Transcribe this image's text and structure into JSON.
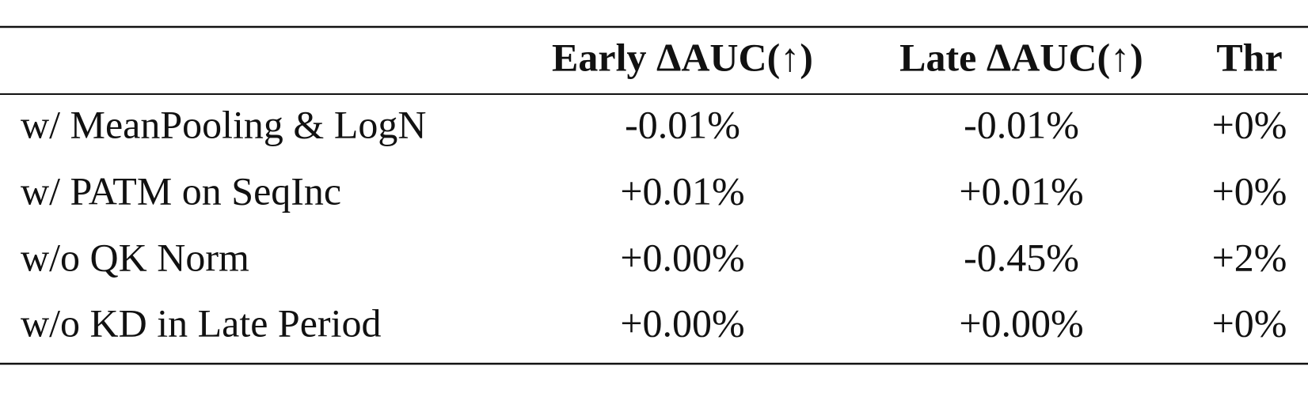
{
  "table": {
    "header": [
      "Early ΔAUC(↑)",
      "Late ΔAUC(↑)",
      "Thr"
    ],
    "rows": [
      [
        "w/ MeanPooling & LogN",
        "-0.01%",
        "-0.01%",
        "+0%"
      ],
      [
        "w/ PATM on SeqInc",
        "+0.01%",
        "+0.01%",
        "+0%"
      ],
      [
        "w/o QK Norm",
        "+0.00%",
        "-0.45%",
        "+2%"
      ],
      [
        "w/o KD in Late Period",
        "+0.00%",
        "+0.00%",
        "+0%"
      ]
    ]
  }
}
